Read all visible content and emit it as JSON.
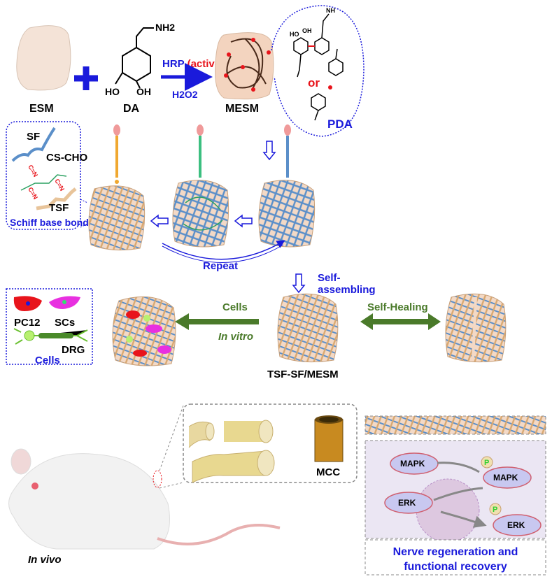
{
  "top_row": {
    "esm_label": "ESM",
    "da_label": "DA",
    "da_nh2": "NH2",
    "da_ho": "HO",
    "da_oh": "OH",
    "hrp_label": "HRP",
    "active_label": "(active)",
    "h2o2_label": "H2O2",
    "mesm_label": "MESM",
    "pda_label": "PDA",
    "or_label": "or",
    "pda_oh": "OH",
    "pda_ho": "HO",
    "pda_nh": "NH"
  },
  "schiff": {
    "sf_label": "SF",
    "cs_cho_label": "CS-CHO",
    "tsf_label": "TSF",
    "bond_label": "C=N",
    "title": "Schiff base bond"
  },
  "middle": {
    "repeat_label": "Repeat",
    "self_assembling_1": "Self-",
    "self_assembling_2": "assembling"
  },
  "cells_box": {
    "pc12_label": "PC12",
    "scs_label": "SCs",
    "drg_label": "DRG",
    "title": "Cells"
  },
  "lower": {
    "cells_arrow_label": "Cells",
    "in_vitro_label": "In vitro",
    "self_healing_label": "Self-Healing",
    "composite_label": "TSF-SF/MESM"
  },
  "bottom": {
    "in_vivo_label": "In vivo",
    "mcc_label": "MCC",
    "mapk_label": "MAPK",
    "erk_label": "ERK",
    "p_label": "P",
    "outcome_line1": "Nerve regeneration and",
    "outcome_line2": "functional recovery"
  },
  "colors": {
    "blue_text": "#1a1adb",
    "red_text": "#e8141b",
    "green_arrow": "#4a7a2a",
    "mesh_blue": "#5b8fc9",
    "mesh_tan": "#d9b48a",
    "membrane": "#f3d9c6"
  }
}
